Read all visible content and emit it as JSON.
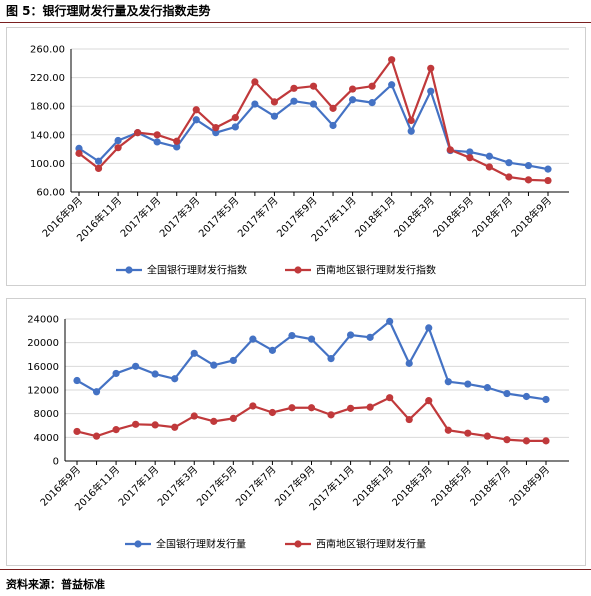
{
  "figure_title": "图 5：银行理财发行量及发行指数走势",
  "source": "资料来源：普益标准",
  "colors": {
    "national": "#4472c4",
    "southwest": "#c0393b"
  },
  "chart_data": [
    {
      "type": "line",
      "categories": [
        "2016年9月",
        "2016年10月",
        "2016年11月",
        "2016年12月",
        "2017年1月",
        "2017年2月",
        "2017年3月",
        "2017年4月",
        "2017年5月",
        "2017年6月",
        "2017年7月",
        "2017年8月",
        "2017年9月",
        "2017年10月",
        "2017年11月",
        "2017年12月",
        "2018年1月",
        "2018年2月",
        "2018年3月",
        "2018年4月",
        "2018年5月",
        "2018年6月",
        "2018年7月",
        "2018年8月",
        "2018年9月"
      ],
      "x_tick_labels": [
        "2016年9月",
        "2016年11月",
        "2017年1月",
        "2017年3月",
        "2017年5月",
        "2017年7月",
        "2017年9月",
        "2017年11月",
        "2018年1月",
        "2018年3月",
        "2018年5月",
        "2018年7月",
        "2018年9月"
      ],
      "ylim": [
        60,
        260
      ],
      "y_ticks": [
        "60.00",
        "100.00",
        "140.00",
        "180.00",
        "220.00",
        "260.00"
      ],
      "y_tick_values": [
        60,
        100,
        140,
        180,
        220,
        260
      ],
      "grid": true,
      "legend_position": "bottom",
      "series": [
        {
          "name": "全国银行理财发行指数",
          "values": [
            121,
            103,
            132,
            143,
            130,
            123,
            161,
            143,
            151,
            183,
            166,
            187,
            183,
            153,
            189,
            185,
            210,
            145,
            201,
            118,
            116,
            110,
            101,
            97,
            92
          ]
        },
        {
          "name": "西南地区银行理财发行指数",
          "values": [
            114,
            93,
            122,
            143,
            140,
            131,
            175,
            150,
            164,
            214,
            186,
            205,
            208,
            177,
            204,
            208,
            245,
            160,
            233,
            119,
            108,
            95,
            81,
            77,
            76
          ]
        }
      ]
    },
    {
      "type": "line",
      "categories": [
        "2016年9月",
        "2016年10月",
        "2016年11月",
        "2016年12月",
        "2017年1月",
        "2017年2月",
        "2017年3月",
        "2017年4月",
        "2017年5月",
        "2017年6月",
        "2017年7月",
        "2017年8月",
        "2017年9月",
        "2017年10月",
        "2017年11月",
        "2017年12月",
        "2018年1月",
        "2018年2月",
        "2018年3月",
        "2018年4月",
        "2018年5月",
        "2018年6月",
        "2018年7月",
        "2018年8月",
        "2018年9月"
      ],
      "x_tick_labels": [
        "2016年9月",
        "2016年11月",
        "2017年1月",
        "2017年3月",
        "2017年5月",
        "2017年7月",
        "2017年9月",
        "2017年11月",
        "2018年1月",
        "2018年3月",
        "2018年5月",
        "2018年7月",
        "2018年9月"
      ],
      "ylim": [
        0,
        24000
      ],
      "y_ticks": [
        "0",
        "4000",
        "8000",
        "12000",
        "16000",
        "20000",
        "24000"
      ],
      "y_tick_values": [
        0,
        4000,
        8000,
        12000,
        16000,
        20000,
        24000
      ],
      "grid": true,
      "legend_position": "bottom",
      "series": [
        {
          "name": "全国银行理财发行量",
          "values": [
            13600,
            11700,
            14800,
            16000,
            14700,
            13900,
            18200,
            16200,
            17000,
            20600,
            18700,
            21200,
            20600,
            17300,
            21300,
            20900,
            23600,
            16500,
            22500,
            13400,
            13000,
            12400,
            11400,
            10900,
            10400
          ]
        },
        {
          "name": "西南地区银行理财发行量",
          "values": [
            5000,
            4200,
            5300,
            6200,
            6100,
            5700,
            7600,
            6700,
            7200,
            9300,
            8200,
            9000,
            9000,
            7800,
            8900,
            9100,
            10700,
            7000,
            10200,
            5200,
            4700,
            4200,
            3600,
            3400,
            3400
          ]
        }
      ]
    }
  ]
}
